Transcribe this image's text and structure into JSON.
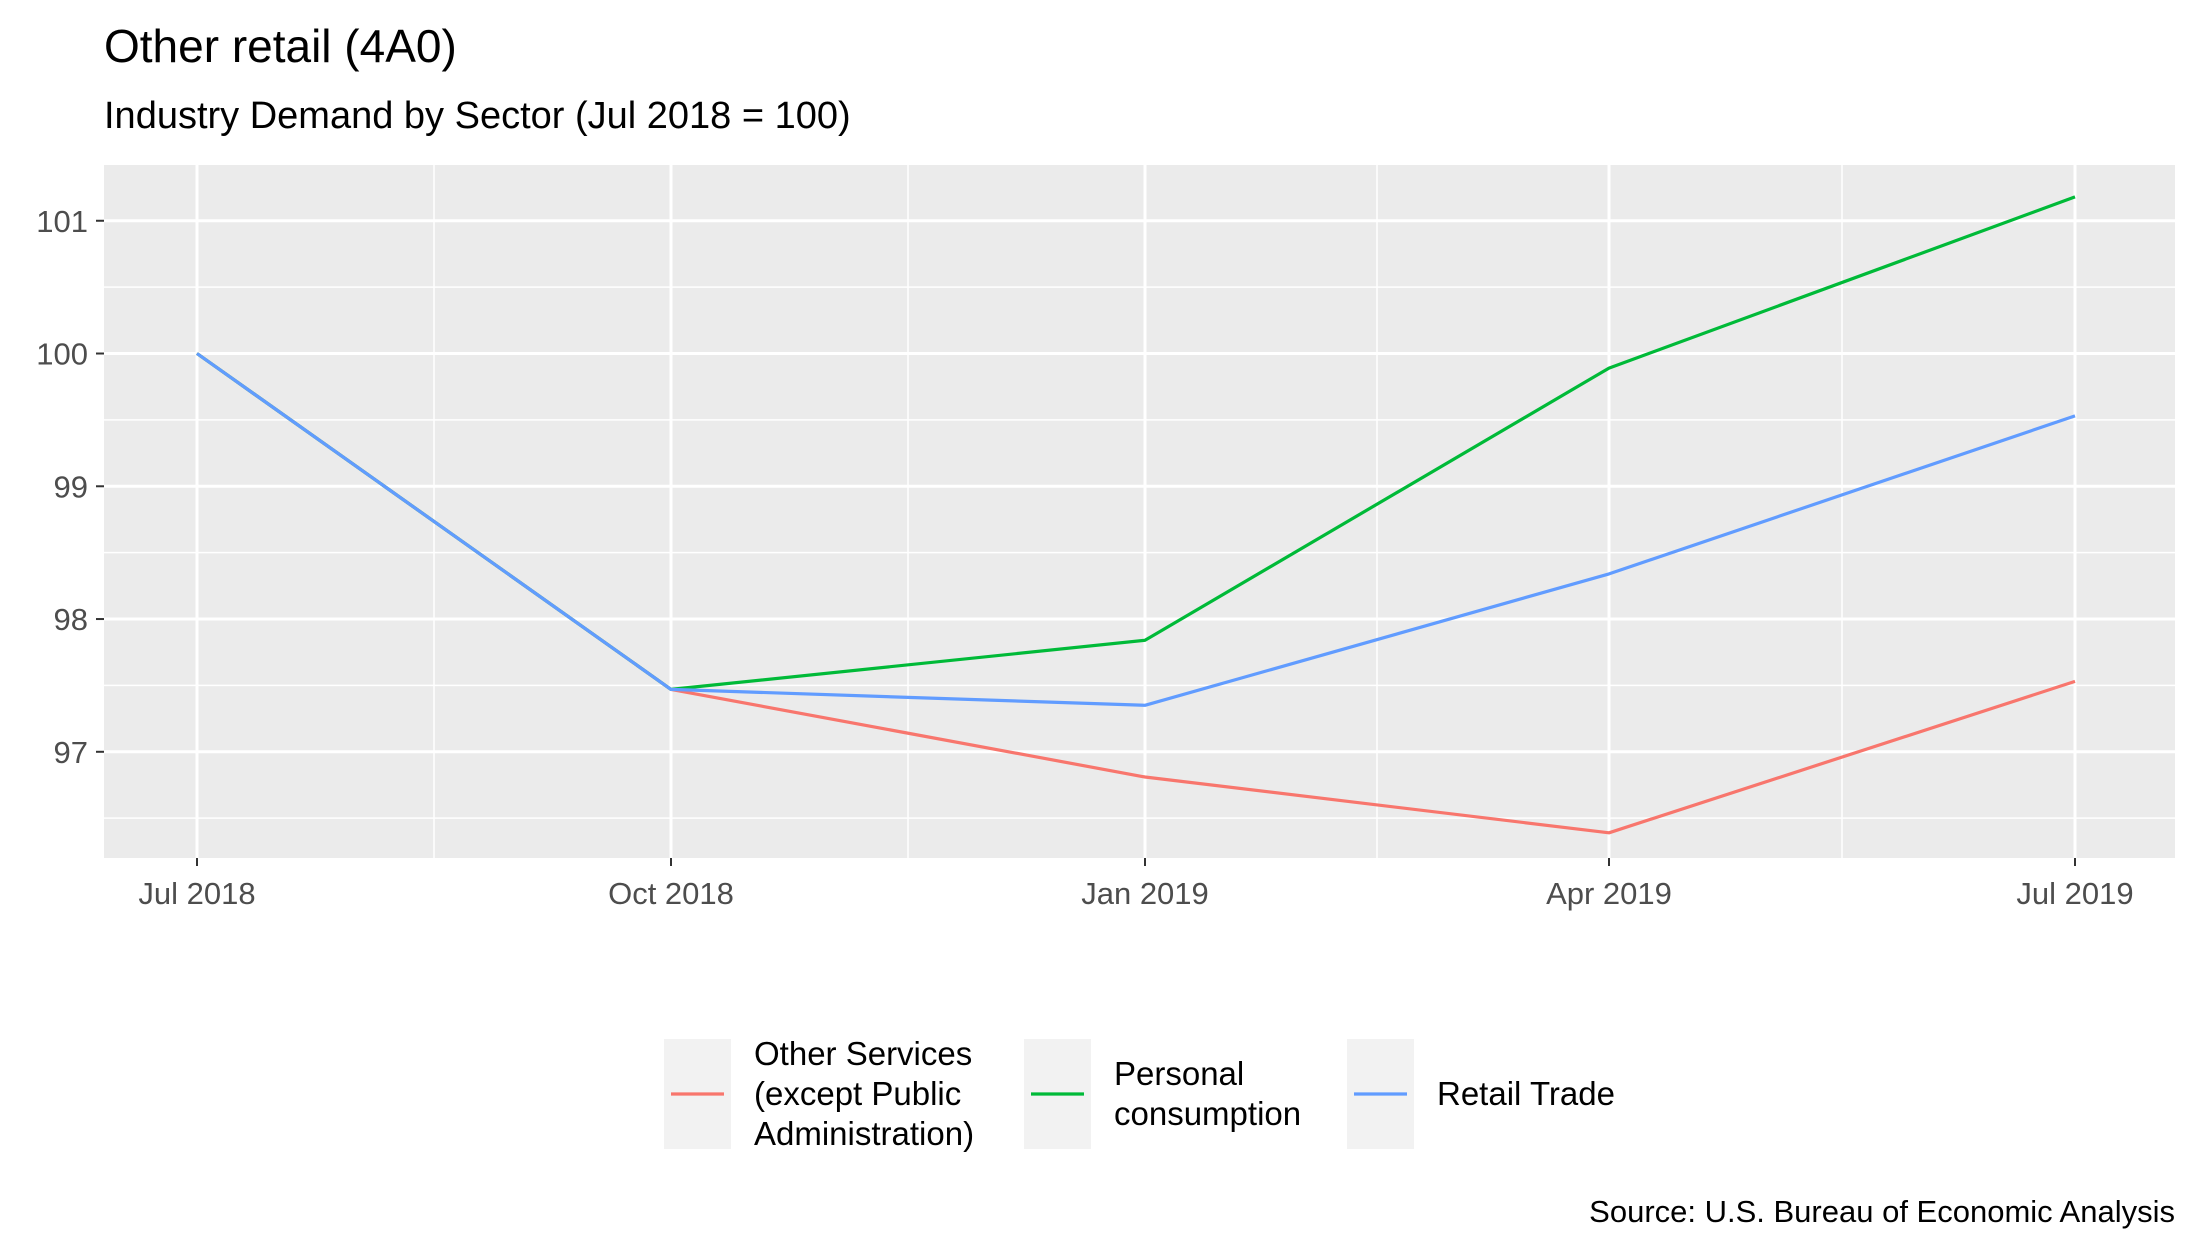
{
  "chart_data": {
    "type": "line",
    "title": "Other retail (4A0)",
    "subtitle": "Industry Demand by Sector (Jul 2018 = 100)",
    "caption": "Source: U.S. Bureau of Economic Analysis",
    "xlabel": "",
    "ylabel": "",
    "x": [
      "Jul 2018",
      "Oct 2018",
      "Jan 2019",
      "Apr 2019",
      "Jul 2019"
    ],
    "x_tick_labels": [
      "Jul 2018",
      "Oct 2018",
      "Jan 2019",
      "Apr 2019",
      "Jul 2019"
    ],
    "y_ticks": [
      97,
      98,
      99,
      100,
      101
    ],
    "y_tick_labels": [
      "97",
      "98",
      "99",
      "100",
      "101"
    ],
    "ylim": [
      96.2,
      101.42
    ],
    "grid": true,
    "legend_position": "bottom",
    "series": [
      {
        "name": "Other Services (except Public Administration)",
        "legend_lines": [
          "Other Services",
          "(except Public",
          "Administration)"
        ],
        "color": "#F8766D",
        "values": [
          100.0,
          97.47,
          96.81,
          96.39,
          97.53
        ]
      },
      {
        "name": "Personal consumption",
        "legend_lines": [
          "Personal",
          "consumption"
        ],
        "color": "#00BA38",
        "values": [
          100.0,
          97.47,
          97.84,
          99.89,
          101.18
        ]
      },
      {
        "name": "Retail Trade",
        "legend_lines": [
          "Retail Trade"
        ],
        "color": "#619CFF",
        "values": [
          100.0,
          97.47,
          97.35,
          98.34,
          99.53
        ]
      }
    ]
  }
}
